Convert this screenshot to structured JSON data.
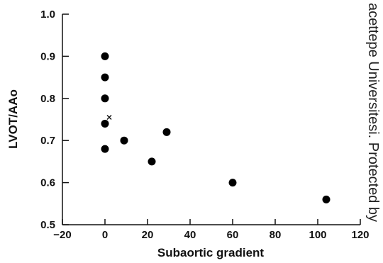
{
  "chart_data": {
    "type": "scatter",
    "xlabel": "Subaortic gradient",
    "ylabel": "LVOT/AAo",
    "xlim": [
      -20,
      120
    ],
    "ylim": [
      0.5,
      1.0
    ],
    "x_ticks": [
      "−20",
      "0",
      "20",
      "40",
      "60",
      "80",
      "100",
      "120"
    ],
    "y_ticks": [
      "0.5",
      "0.6",
      "0.7",
      "0.8",
      "0.9",
      "1.0"
    ],
    "grid": false,
    "series": [
      {
        "marker": "filled-circle",
        "points": [
          {
            "x": 0,
            "y": 0.9
          },
          {
            "x": 0,
            "y": 0.85
          },
          {
            "x": 0,
            "y": 0.8
          },
          {
            "x": 0,
            "y": 0.74
          },
          {
            "x": 0,
            "y": 0.68
          },
          {
            "x": 9,
            "y": 0.7
          },
          {
            "x": 22,
            "y": 0.65
          },
          {
            "x": 29,
            "y": 0.72
          },
          {
            "x": 60,
            "y": 0.6
          },
          {
            "x": 104,
            "y": 0.56
          }
        ]
      },
      {
        "marker": "cross",
        "points": [
          {
            "x": 2,
            "y": 0.755
          }
        ]
      }
    ]
  },
  "watermark": "acettepe Universitesi. Protected by"
}
